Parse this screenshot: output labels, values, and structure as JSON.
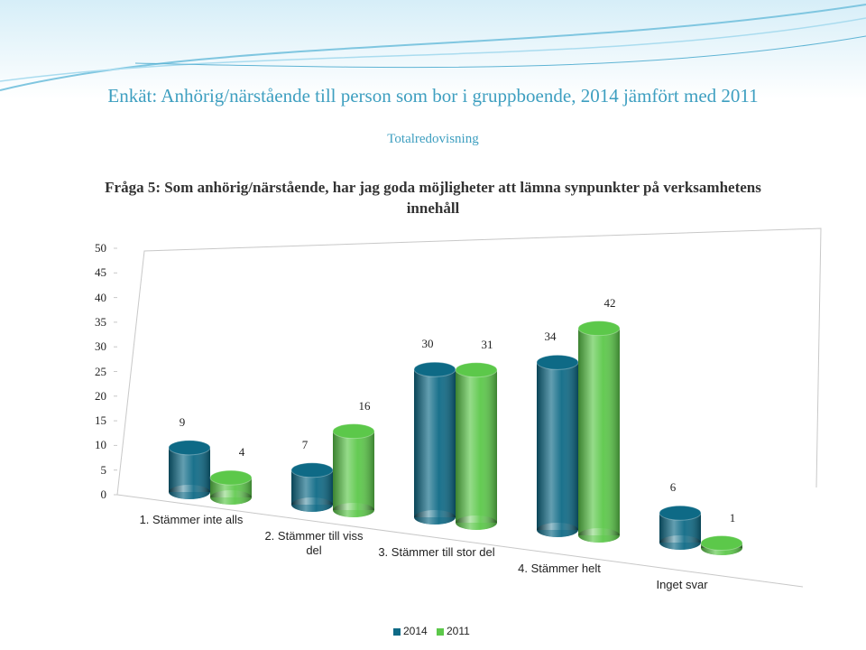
{
  "header": {
    "title": "Enkät: Anhörig/närstående till person som bor i gruppboende, 2014 jämfört med 2011",
    "subtitle": "Totalredovisning"
  },
  "chart_data": {
    "type": "bar",
    "title": "Fråga 5: Som anhörig/närstående, har jag goda möjligheter att lämna synpunkter på verksamhetens innehåll",
    "categories": [
      "1. Stämmer inte alls",
      "2. Stämmer till viss del",
      "3. Stämmer till stor del",
      "4. Stämmer helt",
      "Inget svar"
    ],
    "series": [
      {
        "name": "2014",
        "color": "#0e6a86",
        "values": [
          9,
          7,
          30,
          34,
          6
        ]
      },
      {
        "name": "2011",
        "color": "#5cc84a",
        "values": [
          4,
          16,
          31,
          42,
          1
        ]
      }
    ],
    "ylim": [
      0,
      50
    ],
    "yticks": [
      0,
      5,
      10,
      15,
      20,
      25,
      30,
      35,
      40,
      45,
      50
    ]
  }
}
